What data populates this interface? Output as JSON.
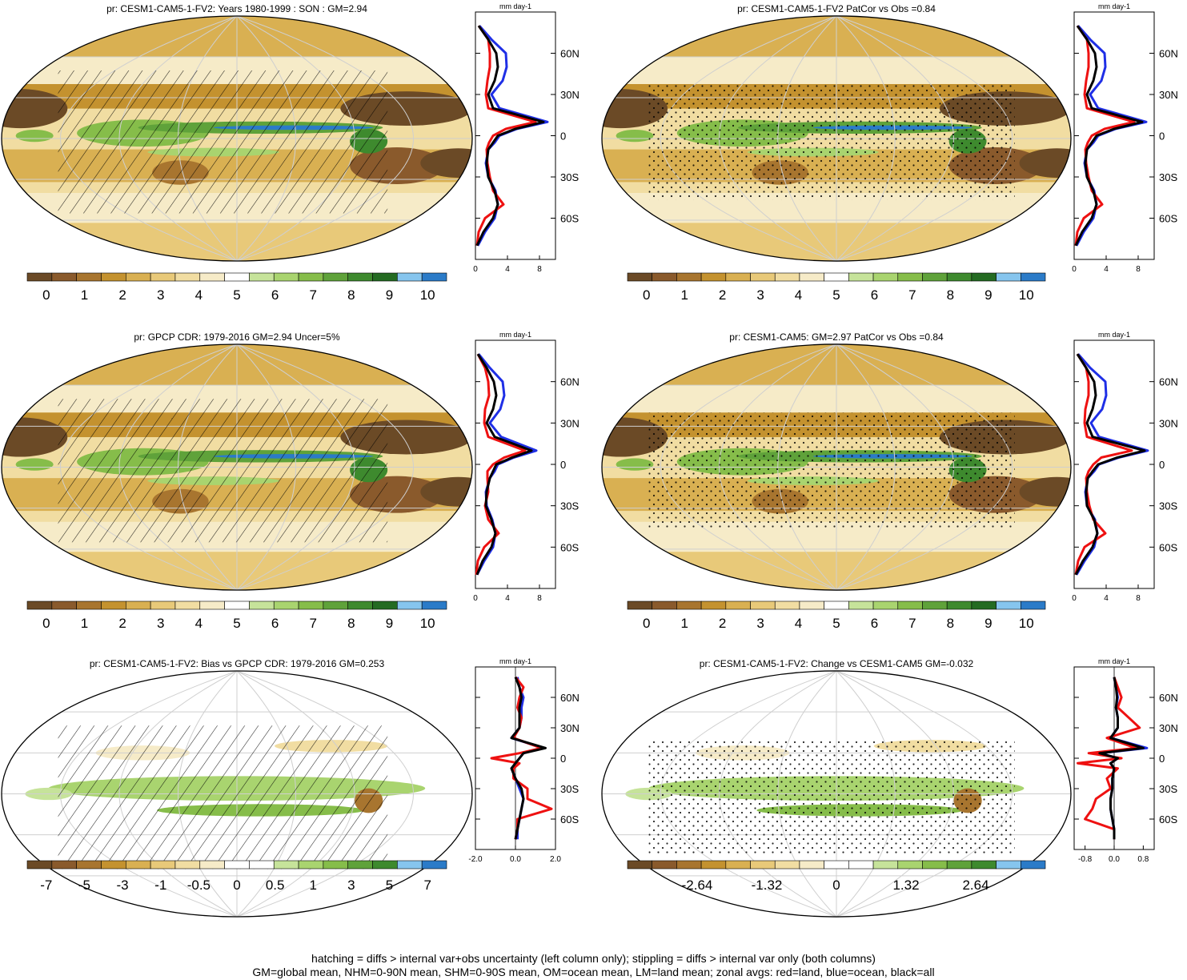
{
  "footer": {
    "line1": "hatching = diffs > internal var+obs uncertainty (left column only); stippling = diffs > internal var only (both columns)",
    "line2": "GM=global mean, NHM=0-90N mean, SHM=0-90S mean, OM=ocean mean, LM=land mean; zonal avgs: red=land, blue=ocean, black=all"
  },
  "colors": {
    "land": "#ee1111",
    "ocean": "#1f2fe6",
    "all": "#000000",
    "abs_palette": [
      "#6b4a26",
      "#8a5a2c",
      "#a8752f",
      "#c4922f",
      "#d9b052",
      "#e8c979",
      "#f1dda2",
      "#f6ebc8",
      "#ffffff",
      "#c6e39a",
      "#a9d46f",
      "#86bd4a",
      "#5fa23a",
      "#3e8a2e",
      "#246b22",
      "#86c5ee",
      "#2b7bc8"
    ],
    "diff_palette": [
      "#6b4a26",
      "#8a5a2c",
      "#a8752f",
      "#c4922f",
      "#d9b052",
      "#e8c979",
      "#f1dda2",
      "#f6ebc8",
      "#ffffff",
      "#ffffff",
      "#c6e39a",
      "#a9d46f",
      "#86bd4a",
      "#5fa23a",
      "#3e8a2e",
      "#86c5ee",
      "#2b7bc8"
    ]
  },
  "chart_data": [
    {
      "type": "heatmap",
      "title": "pr: CESM1-CAM5-1-FV2: Years 1980-1999 : SON : GM=2.94",
      "overlay": "hatching",
      "colorbar": {
        "ticks": [
          "0",
          "1",
          "2",
          "3",
          "4",
          "5",
          "6",
          "7",
          "8",
          "9",
          "10"
        ]
      },
      "zonal": {
        "units": "mm day-1",
        "xticks": [
          "0",
          "4",
          "8"
        ],
        "xlim": [
          0,
          10
        ],
        "yticks": [
          "60N",
          "30N",
          "0",
          "30S",
          "60S"
        ],
        "lat": [
          80,
          70,
          60,
          50,
          40,
          30,
          20,
          10,
          5,
          0,
          -5,
          -10,
          -20,
          -30,
          -40,
          -50,
          -60,
          -70,
          -80
        ],
        "all": [
          0.4,
          1.6,
          2.6,
          2.8,
          2.4,
          1.6,
          2.2,
          8.5,
          5.0,
          2.8,
          2.2,
          1.6,
          1.4,
          1.6,
          2.4,
          2.8,
          2.2,
          1.0,
          0.2
        ],
        "land": [
          0.4,
          1.6,
          1.8,
          1.8,
          1.5,
          1.3,
          1.6,
          7.5,
          3.8,
          2.2,
          1.7,
          1.4,
          1.5,
          1.8,
          2.2,
          3.5,
          1.2,
          0.4,
          0.2
        ],
        "ocean": [
          0.5,
          2.0,
          3.8,
          3.9,
          3.4,
          2.0,
          3.0,
          9.0,
          5.2,
          3.0,
          2.4,
          1.6,
          1.3,
          1.6,
          2.5,
          2.8,
          2.4,
          1.2,
          0.3
        ]
      }
    },
    {
      "type": "heatmap",
      "title": "pr: CESM1-CAM5-1-FV2 PatCor vs Obs =0.84",
      "overlay": "stippling",
      "colorbar": {
        "ticks": [
          "0",
          "1",
          "2",
          "3",
          "4",
          "5",
          "6",
          "7",
          "8",
          "9",
          "10"
        ]
      },
      "zonal": {
        "units": "mm day-1",
        "xticks": [
          "0",
          "4",
          "8"
        ],
        "xlim": [
          0,
          10
        ],
        "yticks": [
          "60N",
          "30N",
          "0",
          "30S",
          "60S"
        ],
        "lat": [
          80,
          70,
          60,
          50,
          40,
          30,
          20,
          10,
          5,
          0,
          -5,
          -10,
          -20,
          -30,
          -40,
          -50,
          -60,
          -70,
          -80
        ],
        "all": [
          0.4,
          1.6,
          2.6,
          2.8,
          2.4,
          1.6,
          2.2,
          8.5,
          5.0,
          2.8,
          2.2,
          1.6,
          1.4,
          1.6,
          2.4,
          2.8,
          2.2,
          1.0,
          0.2
        ],
        "land": [
          0.4,
          1.6,
          1.8,
          1.8,
          1.5,
          1.3,
          1.6,
          7.5,
          3.8,
          2.2,
          1.7,
          1.4,
          1.5,
          1.8,
          2.2,
          3.5,
          1.2,
          0.4,
          0.2
        ],
        "ocean": [
          0.5,
          2.0,
          3.8,
          3.9,
          3.4,
          2.0,
          3.0,
          9.0,
          5.2,
          3.0,
          2.4,
          1.6,
          1.3,
          1.6,
          2.5,
          2.8,
          2.4,
          1.2,
          0.3
        ]
      }
    },
    {
      "type": "heatmap",
      "title": "pr: GPCP CDR: 1979-2016 GM=2.94 Uncer=5%",
      "overlay": "hatching",
      "colorbar": {
        "ticks": [
          "0",
          "1",
          "2",
          "3",
          "4",
          "5",
          "6",
          "7",
          "8",
          "9",
          "10"
        ]
      },
      "zonal": {
        "units": "mm day-1",
        "xticks": [
          "0",
          "4",
          "8"
        ],
        "xlim": [
          0,
          10
        ],
        "yticks": [
          "60N",
          "30N",
          "0",
          "30S",
          "60S"
        ],
        "lat": [
          80,
          70,
          60,
          50,
          40,
          30,
          20,
          10,
          5,
          0,
          -5,
          -10,
          -20,
          -30,
          -40,
          -50,
          -60,
          -70,
          -80
        ],
        "all": [
          0.3,
          1.4,
          2.3,
          2.6,
          2.2,
          1.4,
          2.4,
          7.0,
          4.6,
          2.6,
          2.2,
          1.8,
          1.4,
          1.3,
          2.0,
          2.5,
          2.0,
          0.9,
          0.2
        ],
        "land": [
          0.3,
          1.2,
          1.6,
          1.7,
          1.2,
          1.1,
          1.6,
          6.2,
          3.6,
          2.2,
          1.5,
          1.5,
          1.6,
          1.2,
          1.6,
          2.9,
          1.1,
          0.3,
          0.1
        ],
        "ocean": [
          0.4,
          1.8,
          3.4,
          3.6,
          3.1,
          1.8,
          3.2,
          7.6,
          4.8,
          2.8,
          2.4,
          1.8,
          1.3,
          1.4,
          2.1,
          2.5,
          2.2,
          1.1,
          0.2
        ]
      }
    },
    {
      "type": "heatmap",
      "title": "pr: CESM1-CAM5: GM=2.97 PatCor vs Obs =0.84",
      "overlay": "stippling",
      "colorbar": {
        "ticks": [
          "0",
          "1",
          "2",
          "3",
          "4",
          "5",
          "6",
          "7",
          "8",
          "9",
          "10"
        ]
      },
      "zonal": {
        "units": "mm day-1",
        "xticks": [
          "0",
          "4",
          "8"
        ],
        "xlim": [
          0,
          10
        ],
        "yticks": [
          "60N",
          "30N",
          "0",
          "30S",
          "60S"
        ],
        "lat": [
          80,
          70,
          60,
          50,
          40,
          30,
          20,
          10,
          5,
          0,
          -5,
          -10,
          -20,
          -30,
          -40,
          -50,
          -60,
          -70,
          -80
        ],
        "all": [
          0.4,
          1.5,
          2.5,
          2.7,
          2.3,
          1.6,
          2.3,
          8.8,
          5.4,
          3.0,
          2.3,
          1.7,
          1.5,
          1.6,
          2.5,
          2.9,
          2.3,
          1.1,
          0.2
        ],
        "land": [
          0.4,
          1.5,
          1.8,
          1.8,
          1.4,
          1.3,
          1.6,
          7.2,
          3.4,
          2.4,
          1.8,
          1.5,
          1.6,
          1.9,
          2.4,
          3.9,
          1.3,
          0.5,
          0.2
        ],
        "ocean": [
          0.5,
          2.0,
          3.9,
          4.0,
          3.5,
          2.1,
          3.1,
          9.2,
          5.6,
          3.1,
          2.5,
          1.7,
          1.4,
          1.6,
          2.6,
          2.9,
          2.5,
          1.3,
          0.3
        ]
      }
    },
    {
      "type": "heatmap",
      "title": "pr: CESM1-CAM5-1-FV2: Bias vs GPCP CDR: 1979-2016  GM=0.253",
      "overlay": "hatching",
      "colorbar": {
        "ticks": [
          "-7",
          "-5",
          "-3",
          "-1",
          "-0.5",
          "0",
          "0.5",
          "1",
          "3",
          "5",
          "7"
        ]
      },
      "zonal": {
        "units": "mm day-1",
        "xticks": [
          "-2.0",
          "0.0",
          "2.0"
        ],
        "xlim": [
          -2.0,
          2.0
        ],
        "yticks": [
          "60N",
          "30N",
          "0",
          "30S",
          "60S"
        ],
        "lat": [
          80,
          70,
          60,
          50,
          40,
          30,
          20,
          10,
          5,
          0,
          -5,
          -10,
          -20,
          -30,
          -40,
          -50,
          -60,
          -70,
          -80
        ],
        "all": [
          0.0,
          0.2,
          0.3,
          0.2,
          0.2,
          0.2,
          -0.2,
          1.5,
          0.4,
          0.2,
          0.0,
          -0.2,
          0.0,
          0.3,
          0.4,
          0.3,
          0.2,
          0.1,
          0.0
        ],
        "land": [
          0.0,
          0.4,
          0.2,
          0.1,
          0.3,
          0.2,
          -0.1,
          1.3,
          0.2,
          -1.2,
          0.2,
          -0.1,
          -0.1,
          0.6,
          0.6,
          1.8,
          0.1,
          0.1,
          0.0
        ],
        "ocean": [
          0.1,
          0.2,
          0.4,
          0.3,
          0.3,
          0.2,
          -0.2,
          1.4,
          0.4,
          0.2,
          0.0,
          -0.2,
          0.0,
          0.2,
          0.4,
          0.3,
          0.2,
          0.1,
          0.1
        ]
      }
    },
    {
      "type": "heatmap",
      "title": "pr: CESM1-CAM5-1-FV2: Change vs CESM1-CAM5 GM=-0.032",
      "overlay": "stippling",
      "colorbar": {
        "ticks": [
          "-2.64",
          "-1.32",
          "0",
          "1.32",
          "2.64"
        ]
      },
      "zonal": {
        "units": "mm day-1",
        "xticks": [
          "-0.8",
          "0.0",
          "0.8"
        ],
        "xlim": [
          -1.1,
          1.1
        ],
        "yticks": [
          "60N",
          "30N",
          "0",
          "30S",
          "60S"
        ],
        "lat": [
          80,
          70,
          60,
          50,
          40,
          30,
          20,
          10,
          5,
          0,
          -5,
          -10,
          -20,
          -30,
          -40,
          -50,
          -60,
          -70,
          -80
        ],
        "all": [
          0.0,
          0.05,
          0.08,
          0.05,
          0.1,
          0.1,
          -0.1,
          0.8,
          -0.4,
          0.1,
          -0.1,
          0.0,
          -0.05,
          -0.05,
          -0.1,
          -0.1,
          -0.05,
          0.0,
          0.0
        ],
        "land": [
          0.0,
          0.1,
          0.2,
          0.1,
          0.4,
          0.7,
          -0.2,
          0.6,
          -0.7,
          0.2,
          -1.0,
          0.1,
          -0.2,
          -0.1,
          -0.5,
          -0.6,
          -0.8,
          0.0,
          0.0
        ],
        "ocean": [
          0.0,
          0.05,
          0.1,
          0.05,
          0.1,
          0.1,
          -0.1,
          0.9,
          -0.4,
          0.1,
          -0.1,
          0.0,
          -0.05,
          -0.05,
          -0.1,
          -0.1,
          -0.05,
          0.0,
          0.0
        ]
      }
    }
  ]
}
